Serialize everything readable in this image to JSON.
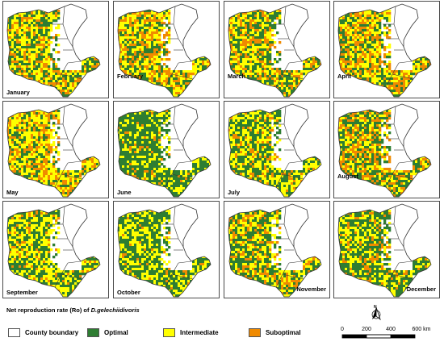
{
  "months": [
    {
      "name": "January",
      "opt": 0.35,
      "int": 0.4,
      "sub": 0.25,
      "label_pos": "low"
    },
    {
      "name": "February",
      "opt": 0.3,
      "int": 0.4,
      "sub": 0.3,
      "label_pos": "mid"
    },
    {
      "name": "March",
      "opt": 0.38,
      "int": 0.37,
      "sub": 0.25,
      "label_pos": "mid"
    },
    {
      "name": "April",
      "opt": 0.32,
      "int": 0.35,
      "sub": 0.33,
      "label_pos": "mid"
    },
    {
      "name": "May",
      "opt": 0.25,
      "int": 0.45,
      "sub": 0.3,
      "label_pos": "low"
    },
    {
      "name": "June",
      "opt": 0.7,
      "int": 0.25,
      "sub": 0.05,
      "label_pos": "low"
    },
    {
      "name": "July",
      "opt": 0.45,
      "int": 0.42,
      "sub": 0.13,
      "label_pos": "low"
    },
    {
      "name": "August",
      "opt": 0.4,
      "int": 0.3,
      "sub": 0.3,
      "label_pos": "mid"
    },
    {
      "name": "September",
      "opt": 0.42,
      "int": 0.45,
      "sub": 0.13,
      "label_pos": "low"
    },
    {
      "name": "October",
      "opt": 0.55,
      "int": 0.4,
      "sub": 0.05,
      "label_pos": "low"
    },
    {
      "name": "November",
      "opt": 0.4,
      "int": 0.35,
      "sub": 0.25,
      "label_pos": "right"
    },
    {
      "name": "December",
      "opt": 0.55,
      "int": 0.33,
      "sub": 0.12,
      "label_pos": "right"
    }
  ],
  "legend": {
    "title_prefix": "Net reproduction rate (Ro) of",
    "title_species": "D.gelechiidivoris",
    "items": [
      {
        "label": "County boundary",
        "color": "#ffffff"
      },
      {
        "label": "Optimal",
        "color": "#2e7d32"
      },
      {
        "label": "Intermediate",
        "color": "#ffff00"
      },
      {
        "label": "Suboptimal",
        "color": "#f08a00"
      }
    ]
  },
  "colors": {
    "optimal": "#2e7d32",
    "intermediate": "#ffff00",
    "suboptimal": "#f08a00",
    "boundary": "#333333"
  },
  "scale": {
    "ticks": [
      "0",
      "200",
      "400",
      "600 km"
    ]
  },
  "north_arrow": {
    "label": "N",
    "icon": "north-arrow-icon"
  }
}
